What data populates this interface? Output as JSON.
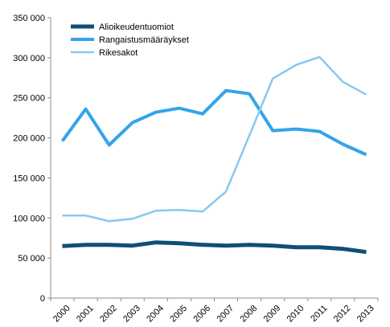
{
  "chart_data": {
    "type": "line",
    "title": "",
    "xlabel": "",
    "ylabel": "",
    "categories": [
      "2000",
      "2001",
      "2002",
      "2003",
      "2004",
      "2005",
      "2006",
      "2007",
      "2008",
      "2009",
      "2010",
      "2011",
      "2012",
      "2013"
    ],
    "y_ticks": [
      "0",
      "50 000",
      "100 000",
      "150 000",
      "200 000",
      "250 000",
      "300 000",
      "350 000"
    ],
    "ylim": [
      0,
      350000
    ],
    "grid": false,
    "legend_position": "top-left",
    "series": [
      {
        "name": "Alioikeudentuomiot",
        "color": "#0d4f78",
        "values": [
          65000,
          66500,
          66500,
          65500,
          69500,
          68500,
          66500,
          65500,
          66500,
          65500,
          63500,
          63500,
          61500,
          57500
        ]
      },
      {
        "name": "Rangaistusmääräykset",
        "color": "#33a4ea",
        "values": [
          196000,
          236000,
          191000,
          219000,
          232000,
          237000,
          230000,
          259000,
          255000,
          209000,
          211000,
          208000,
          192000,
          179000
        ]
      },
      {
        "name": "Rikesakot",
        "color": "#85c9f0",
        "values": [
          103000,
          103000,
          96000,
          99000,
          109000,
          110000,
          108000,
          133000,
          203000,
          274000,
          291000,
          301000,
          270000,
          254000
        ]
      }
    ]
  }
}
